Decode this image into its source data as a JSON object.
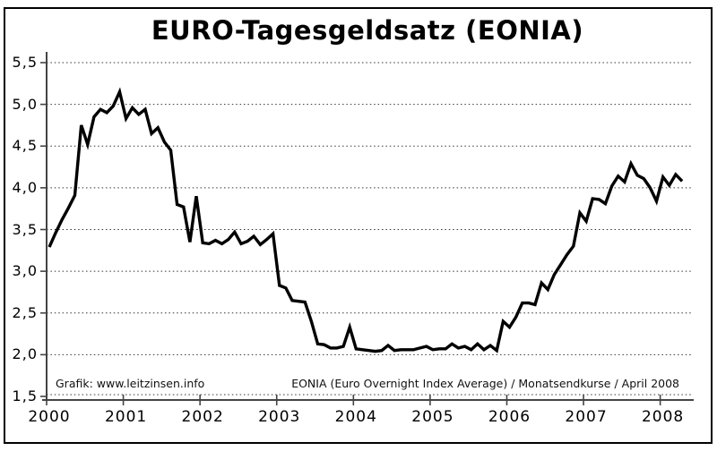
{
  "window": {
    "background": "#ffffff",
    "frame_border_color": "#000000"
  },
  "chart_data": {
    "type": "line",
    "title": "EURO-Tagesgeldsatz (EONIA)",
    "xlabel": "",
    "ylabel": "",
    "ylim": [
      1.5,
      5.5
    ],
    "x_range": [
      "2000-01",
      "2008-04"
    ],
    "x_interval": "monthly",
    "grid": "horizontal-dotted",
    "legend_position": "none",
    "line_color": "#000000",
    "grid_color": "#333333",
    "axis_color": "#444444",
    "x_tick_labels": [
      "2000",
      "2001",
      "2002",
      "2003",
      "2004",
      "2005",
      "2006",
      "2007",
      "2008"
    ],
    "y_ticks": [
      5.5,
      5.0,
      4.5,
      4.0,
      3.5,
      3.0,
      2.5,
      2.0,
      1.5
    ],
    "y_tick_labels": [
      "5,5",
      "5,0",
      "4,5",
      "4,0",
      "3,5",
      "3,0",
      "2,5",
      "2,0",
      "1,5"
    ],
    "source_note_left": "Grafik: www.leitzinsen.info",
    "source_note_right": "EONIA (Euro Overnight Index Average) / Monatsendkurse / April 2008",
    "series": [
      {
        "name": "EONIA Monatsendkurse",
        "values": [
          3.29,
          3.46,
          3.62,
          3.76,
          3.91,
          4.75,
          4.52,
          4.85,
          4.94,
          4.9,
          4.98,
          5.15,
          4.83,
          4.96,
          4.88,
          4.94,
          4.65,
          4.72,
          4.55,
          4.45,
          3.8,
          3.77,
          3.35,
          3.9,
          3.34,
          3.33,
          3.37,
          3.33,
          3.38,
          3.47,
          3.33,
          3.36,
          3.42,
          3.32,
          3.38,
          3.45,
          2.83,
          2.8,
          2.65,
          2.64,
          2.63,
          2.4,
          2.13,
          2.12,
          2.08,
          2.08,
          2.1,
          2.33,
          2.07,
          2.06,
          2.05,
          2.04,
          2.05,
          2.11,
          2.05,
          2.06,
          2.06,
          2.06,
          2.08,
          2.1,
          2.06,
          2.07,
          2.07,
          2.13,
          2.08,
          2.1,
          2.06,
          2.13,
          2.06,
          2.11,
          2.05,
          2.4,
          2.33,
          2.45,
          2.62,
          2.62,
          2.6,
          2.86,
          2.78,
          2.96,
          3.08,
          3.2,
          3.3,
          3.7,
          3.6,
          3.87,
          3.86,
          3.81,
          4.02,
          4.14,
          4.07,
          4.29,
          4.15,
          4.11,
          4.0,
          3.84,
          4.13,
          4.03,
          4.16,
          4.08
        ]
      }
    ]
  }
}
